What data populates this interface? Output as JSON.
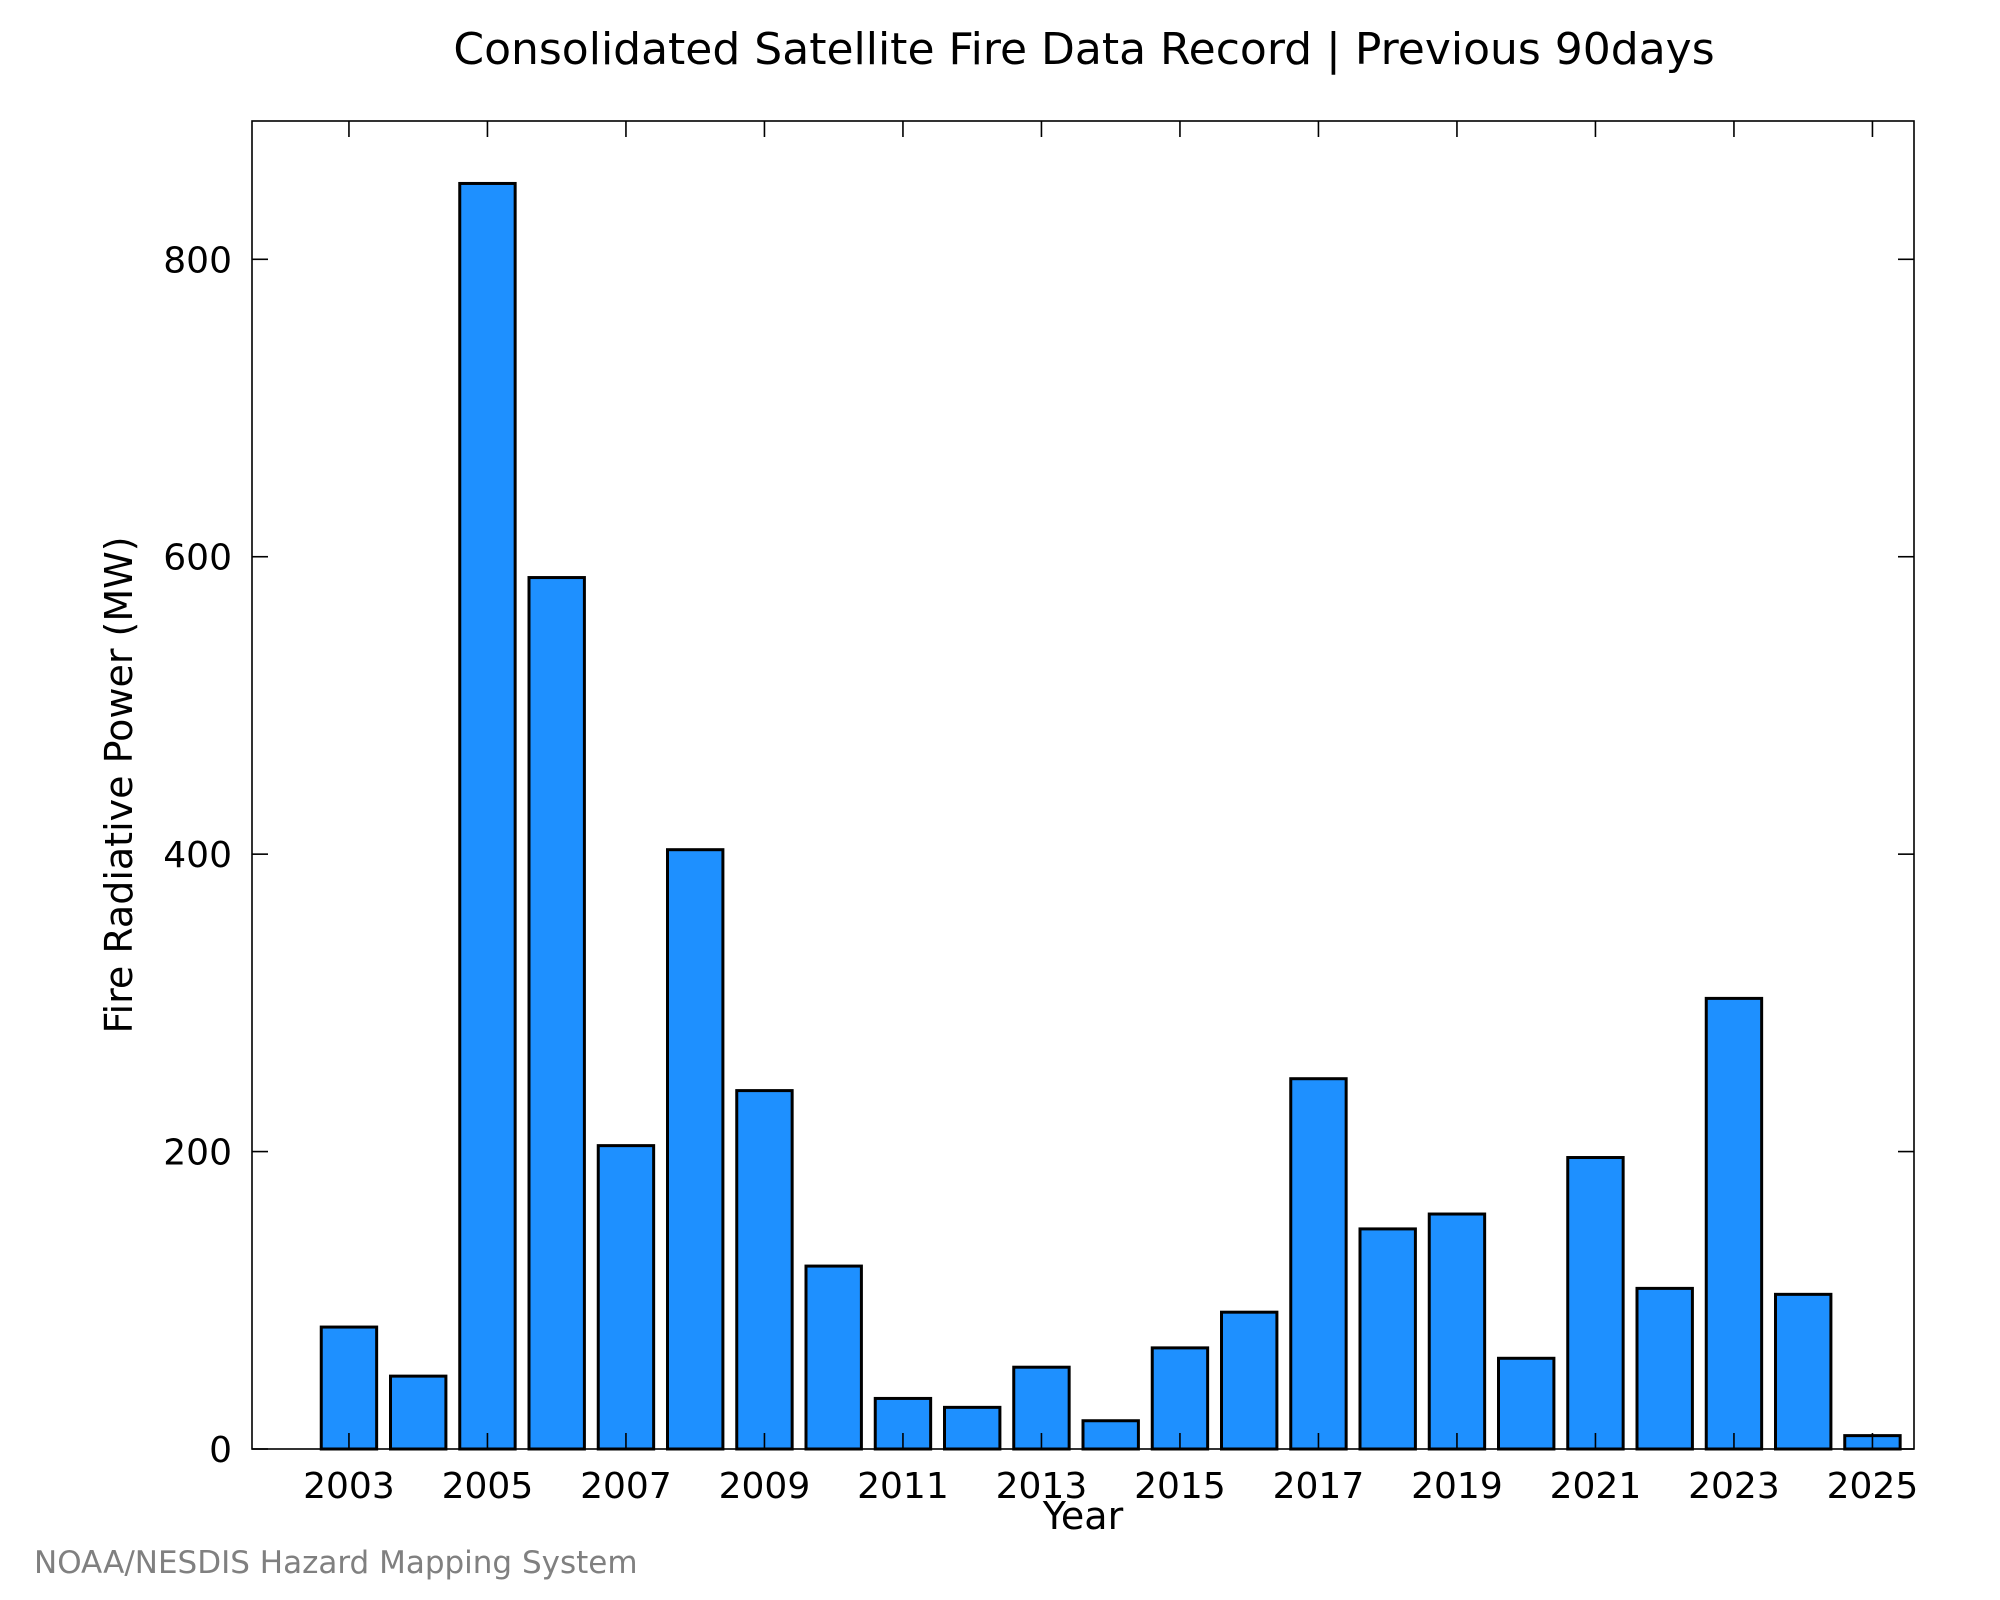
{
  "chart_data": {
    "type": "bar",
    "title": "Consolidated Satellite Fire Data Record | Previous 90days",
    "xlabel": "Year",
    "ylabel": "Fire Radiative Power (MW)",
    "categories": [
      2003,
      2004,
      2005,
      2006,
      2007,
      2008,
      2009,
      2010,
      2011,
      2012,
      2013,
      2014,
      2015,
      2016,
      2017,
      2018,
      2019,
      2020,
      2021,
      2022,
      2023,
      2024,
      2025
    ],
    "values": [
      82,
      49,
      851,
      586,
      204,
      403,
      241,
      123,
      34,
      28,
      55,
      19,
      68,
      92,
      249,
      148,
      158,
      61,
      196,
      108,
      303,
      104,
      9
    ],
    "x_ticks": [
      "2003",
      "2005",
      "2007",
      "2009",
      "2011",
      "2013",
      "2015",
      "2017",
      "2019",
      "2021",
      "2023",
      "2025"
    ],
    "y_ticks": [
      "0",
      "200",
      "400",
      "600",
      "800"
    ],
    "ylim": [
      0,
      893
    ],
    "xlim": [
      2001.6,
      2025.6
    ],
    "grid": false,
    "bar_color": "#1e90ff",
    "edge_color": "#000000"
  },
  "footer": "NOAA/NESDIS Hazard Mapping System"
}
